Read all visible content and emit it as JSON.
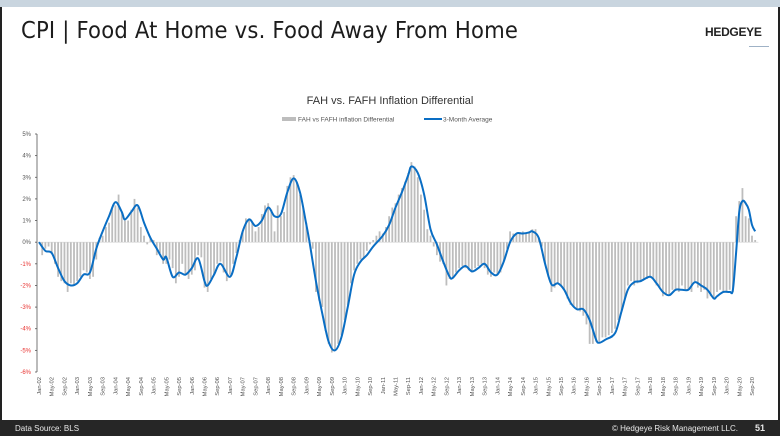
{
  "slide": {
    "title": "CPI | Food At Home vs. Food Away From Home",
    "logo_text": "HEDGEYE",
    "footer_source": "Data Source: BLS",
    "footer_copyright": "© Hedgeye Risk Management LLC.",
    "page_number": "51"
  },
  "colors": {
    "bars": "#bdbdbd",
    "line": "#0a6ec4",
    "negative_tick": "#e8312f",
    "positive_tick": "#555555"
  },
  "chart_data": {
    "type": "bar+line",
    "title": "FAH vs. FAFH Inflation Differential",
    "legend_position": "top-center",
    "ylim": [
      -6,
      5
    ],
    "y_ticks": [
      "5%",
      "4%",
      "3%",
      "2%",
      "1%",
      "0%",
      "-1%",
      "-2%",
      "-3%",
      "-4%",
      "-5%",
      "-6%"
    ],
    "x_start": "Jan-02",
    "x_ticks": [
      "Jan-02",
      "May-02",
      "Sep-02",
      "Jan-03",
      "May-03",
      "Sep-03",
      "Jan-04",
      "May-04",
      "Sep-04",
      "Jan-05",
      "May-05",
      "Sep-05",
      "Jan-06",
      "May-06",
      "Sep-06",
      "Jan-07",
      "May-07",
      "Sep-07",
      "Jan-08",
      "May-08",
      "Sep-08",
      "Jan-09",
      "May-09",
      "Sep-09",
      "Jan-10",
      "May-10",
      "Sep-10",
      "Jan-11",
      "May-11",
      "Sep-11",
      "Jan-12",
      "May-12",
      "Sep-12",
      "Jan-13",
      "May-13",
      "Sep-13",
      "Jan-14",
      "May-14",
      "Sep-14",
      "Jan-15",
      "May-15",
      "Sep-15",
      "Jan-16",
      "May-16",
      "Sep-16",
      "Jan-17",
      "May-17",
      "Sep-17",
      "Jan-18",
      "May-18",
      "Sep-18",
      "Jan-19",
      "May-19",
      "Sep-19",
      "Jan-20",
      "May-20",
      "Sep-20"
    ],
    "series": [
      {
        "name": "FAH vs FAFH inflation Differential",
        "kind": "bar",
        "frequency": "monthly",
        "values": [
          0,
          -0.6,
          -0.3,
          -0.2,
          -0.5,
          -1.0,
          -1.6,
          -1.8,
          -1.9,
          -2.3,
          -1.9,
          -2.0,
          -1.8,
          -1.6,
          -1.3,
          -1.4,
          -1.7,
          -1.6,
          -0.8,
          0.2,
          0.3,
          0.7,
          0.9,
          1.6,
          1.7,
          2.2,
          1.4,
          1.0,
          1.0,
          1.5,
          2.0,
          1.6,
          0.7,
          0.3,
          -0.1,
          0.2,
          0.1,
          -0.6,
          -0.5,
          -1.0,
          -1.0,
          -0.8,
          -1.2,
          -1.9,
          -1.6,
          -1.0,
          -1.5,
          -1.7,
          -1.5,
          -1.3,
          -0.6,
          -0.7,
          -2.1,
          -2.3,
          -1.7,
          -1.5,
          -1.0,
          -0.9,
          -1.4,
          -1.8,
          -1.5,
          -1.0,
          -0.5,
          0.1,
          0.5,
          1.1,
          1.1,
          0.9,
          0.5,
          0.7,
          1.3,
          1.7,
          1.8,
          1.5,
          0.5,
          1.7,
          1.2,
          1.4,
          2.6,
          3.0,
          3.1,
          2.8,
          2.2,
          1.6,
          0.9,
          0.1,
          -0.3,
          -2.3,
          -2.7,
          -3.0,
          -4.1,
          -4.7,
          -5.1,
          -5.0,
          -4.7,
          -4.3,
          -3.6,
          -2.9,
          -1.9,
          -1.3,
          -1.0,
          -0.8,
          -0.7,
          -0.4,
          -0.1,
          0.1,
          0.3,
          0.5,
          0.4,
          0.7,
          1.2,
          1.6,
          1.8,
          2.2,
          2.5,
          2.8,
          3.2,
          3.7,
          3.5,
          3.0,
          2.2,
          1.5,
          0.6,
          0.3,
          -0.2,
          -0.6,
          -0.9,
          -1.0,
          -2.0,
          -1.7,
          -1.6,
          -1.4,
          -1.2,
          -1.1,
          -1.2,
          -1.3,
          -1.4,
          -1.2,
          -1.1,
          -1.0,
          -1.2,
          -1.5,
          -1.6,
          -1.4,
          -1.5,
          -1.4,
          -0.9,
          -0.3,
          0.5,
          0.4,
          0.4,
          0.4,
          0.5,
          0.4,
          0.5,
          0.6,
          0.6,
          0.2,
          -0.2,
          -1.0,
          -1.6,
          -2.3,
          -2.1,
          -1.9,
          -2.0,
          -2.2,
          -2.6,
          -2.9,
          -3.0,
          -3.1,
          -3.2,
          -3.4,
          -3.8,
          -4.7,
          -4.7,
          -4.6,
          -4.6,
          -4.4,
          -4.4,
          -4.3,
          -4.2,
          -4.0,
          -3.6,
          -3.2,
          -2.7,
          -2.0,
          -1.8,
          -2.0,
          -1.9,
          -1.8,
          -1.7,
          -1.7,
          -1.6,
          -1.7,
          -2.0,
          -2.1,
          -2.5,
          -2.4,
          -2.4,
          -2.2,
          -2.2,
          -2.3,
          -2.0,
          -2.2,
          -2.2,
          -2.3,
          -1.8,
          -2.1,
          -2.3,
          -2.2,
          -2.6,
          -2.5,
          -2.6,
          -2.3,
          -2.2,
          -2.3,
          -2.3,
          -2.2,
          -2.3,
          1.2,
          1.9,
          2.5,
          1.2,
          1.1,
          0.3,
          0.1
        ]
      },
      {
        "name": "3-Month Average",
        "kind": "line",
        "points": [
          [
            "Jan-02",
            0
          ],
          [
            "Mar-02",
            -0.4
          ],
          [
            "May-02",
            -0.5
          ],
          [
            "Jul-02",
            -1.2
          ],
          [
            "Sep-02",
            -1.8
          ],
          [
            "Nov-02",
            -2.0
          ],
          [
            "Jan-03",
            -1.9
          ],
          [
            "Mar-03",
            -1.5
          ],
          [
            "May-03",
            -1.4
          ],
          [
            "Jul-03",
            -0.3
          ],
          [
            "Sep-03",
            0.5
          ],
          [
            "Nov-03",
            1.2
          ],
          [
            "Jan-04",
            1.85
          ],
          [
            "Mar-04",
            1.4
          ],
          [
            "Apr-04",
            1.05
          ],
          [
            "Jun-04",
            1.4
          ],
          [
            "Aug-04",
            1.7
          ],
          [
            "Oct-04",
            0.9
          ],
          [
            "Dec-04",
            0.2
          ],
          [
            "Feb-05",
            -0.3
          ],
          [
            "Apr-05",
            -0.8
          ],
          [
            "May-05",
            -0.7
          ],
          [
            "Jul-05",
            -1.6
          ],
          [
            "Sep-05",
            -1.4
          ],
          [
            "Nov-05",
            -1.5
          ],
          [
            "Jan-06",
            -1.2
          ],
          [
            "Mar-06",
            -0.75
          ],
          [
            "May-06",
            -1.8
          ],
          [
            "Jun-06",
            -2.0
          ],
          [
            "Aug-06",
            -1.5
          ],
          [
            "Oct-06",
            -1.0
          ],
          [
            "Jan-07",
            -1.6
          ],
          [
            "Mar-07",
            -0.7
          ],
          [
            "May-07",
            0.5
          ],
          [
            "Jul-07",
            1.05
          ],
          [
            "Sep-07",
            0.75
          ],
          [
            "Nov-07",
            1.0
          ],
          [
            "Jan-08",
            1.6
          ],
          [
            "Mar-08",
            1.2
          ],
          [
            "May-08",
            1.3
          ],
          [
            "Jul-08",
            2.3
          ],
          [
            "Sep-08",
            2.95
          ],
          [
            "Nov-08",
            2.3
          ],
          [
            "Jan-09",
            0.8
          ],
          [
            "Feb-09",
            0.0
          ],
          [
            "Apr-09",
            -1.8
          ],
          [
            "Jun-09",
            -3.3
          ],
          [
            "Aug-09",
            -4.6
          ],
          [
            "Oct-09",
            -5.0
          ],
          [
            "Dec-09",
            -4.4
          ],
          [
            "Feb-10",
            -3.0
          ],
          [
            "Apr-10",
            -1.5
          ],
          [
            "Jun-10",
            -0.9
          ],
          [
            "Aug-10",
            -0.6
          ],
          [
            "Oct-10",
            -0.2
          ],
          [
            "Jan-11",
            0.3
          ],
          [
            "Mar-11",
            0.8
          ],
          [
            "May-11",
            1.6
          ],
          [
            "Jul-11",
            2.3
          ],
          [
            "Sep-11",
            3.1
          ],
          [
            "Oct-11",
            3.5
          ],
          [
            "Dec-11",
            3.2
          ],
          [
            "Feb-12",
            2.2
          ],
          [
            "Apr-12",
            0.6
          ],
          [
            "Jun-12",
            -0.1
          ],
          [
            "Aug-12",
            -0.9
          ],
          [
            "Oct-12",
            -1.6
          ],
          [
            "Nov-12",
            -1.65
          ],
          [
            "Jan-13",
            -1.3
          ],
          [
            "Mar-13",
            -1.1
          ],
          [
            "May-13",
            -1.35
          ],
          [
            "Jul-13",
            -1.2
          ],
          [
            "Sep-13",
            -1.0
          ],
          [
            "Nov-13",
            -1.4
          ],
          [
            "Jan-14",
            -1.5
          ],
          [
            "Mar-14",
            -0.9
          ],
          [
            "May-14",
            0.0
          ],
          [
            "Jul-14",
            0.4
          ],
          [
            "Sep-14",
            0.4
          ],
          [
            "Nov-14",
            0.45
          ],
          [
            "Dec-14",
            0.5
          ],
          [
            "Feb-15",
            0.2
          ],
          [
            "Apr-15",
            -1.0
          ],
          [
            "Jun-15",
            -1.95
          ],
          [
            "Aug-15",
            -1.9
          ],
          [
            "Oct-15",
            -2.2
          ],
          [
            "Dec-15",
            -2.8
          ],
          [
            "Feb-16",
            -3.1
          ],
          [
            "Apr-16",
            -3.1
          ],
          [
            "Jun-16",
            -3.6
          ],
          [
            "Aug-16",
            -4.5
          ],
          [
            "Sep-16",
            -4.65
          ],
          [
            "Nov-16",
            -4.5
          ],
          [
            "Feb-17",
            -4.2
          ],
          [
            "Apr-17",
            -3.2
          ],
          [
            "Jun-17",
            -2.2
          ],
          [
            "Aug-17",
            -1.85
          ],
          [
            "Oct-17",
            -1.8
          ],
          [
            "Jan-18",
            -1.6
          ],
          [
            "Mar-18",
            -1.9
          ],
          [
            "May-18",
            -2.3
          ],
          [
            "Jul-18",
            -2.45
          ],
          [
            "Sep-18",
            -2.2
          ],
          [
            "Nov-18",
            -2.2
          ],
          [
            "Jan-19",
            -2.2
          ],
          [
            "Mar-19",
            -1.85
          ],
          [
            "May-19",
            -2.0
          ],
          [
            "Jul-19",
            -2.2
          ],
          [
            "Sep-19",
            -2.6
          ],
          [
            "Oct-19",
            -2.5
          ],
          [
            "Dec-19",
            -2.3
          ],
          [
            "Feb-20",
            -2.3
          ],
          [
            "Mar-20",
            -2.2
          ],
          [
            "Apr-20",
            -0.5
          ],
          [
            "May-20",
            1.4
          ],
          [
            "Jun-20",
            1.9
          ],
          [
            "Jul-20",
            1.8
          ],
          [
            "Aug-20",
            1.5
          ],
          [
            "Sep-20",
            0.8
          ],
          [
            "Oct-20",
            0.5
          ]
        ]
      }
    ]
  }
}
